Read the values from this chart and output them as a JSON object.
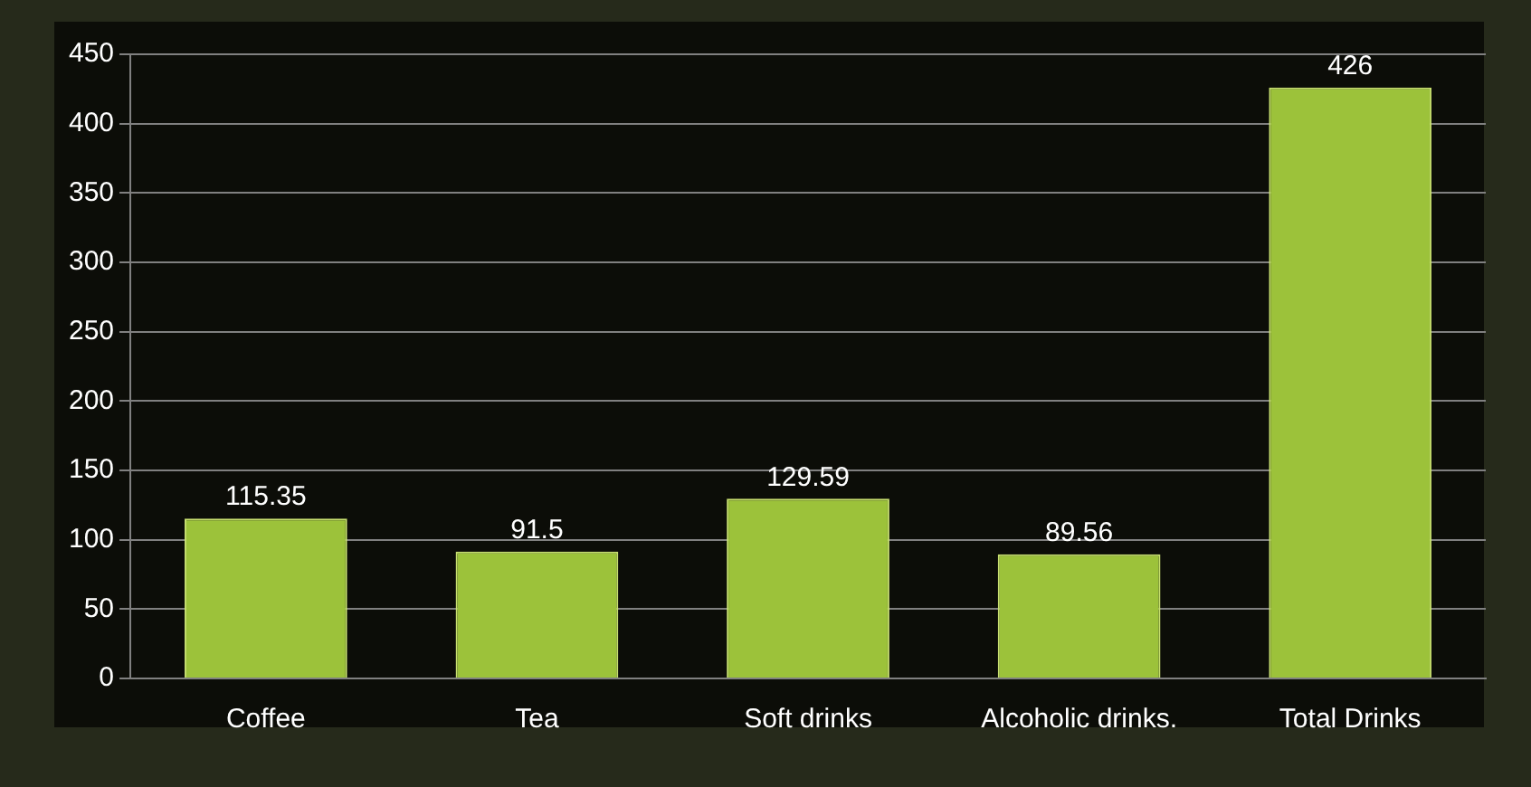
{
  "chart_data": {
    "type": "bar",
    "categories": [
      "Coffee",
      "Tea",
      "Soft drinks",
      "Alcoholic drinks.",
      "Total Drinks"
    ],
    "values": [
      115.35,
      91.5,
      129.59,
      89.56,
      426
    ],
    "color": "#9cc23a",
    "ylim": [
      0,
      450
    ],
    "yticks": [
      0,
      50,
      100,
      150,
      200,
      250,
      300,
      350,
      400,
      450
    ],
    "grid": "y",
    "data_labels": true,
    "legend": false
  }
}
